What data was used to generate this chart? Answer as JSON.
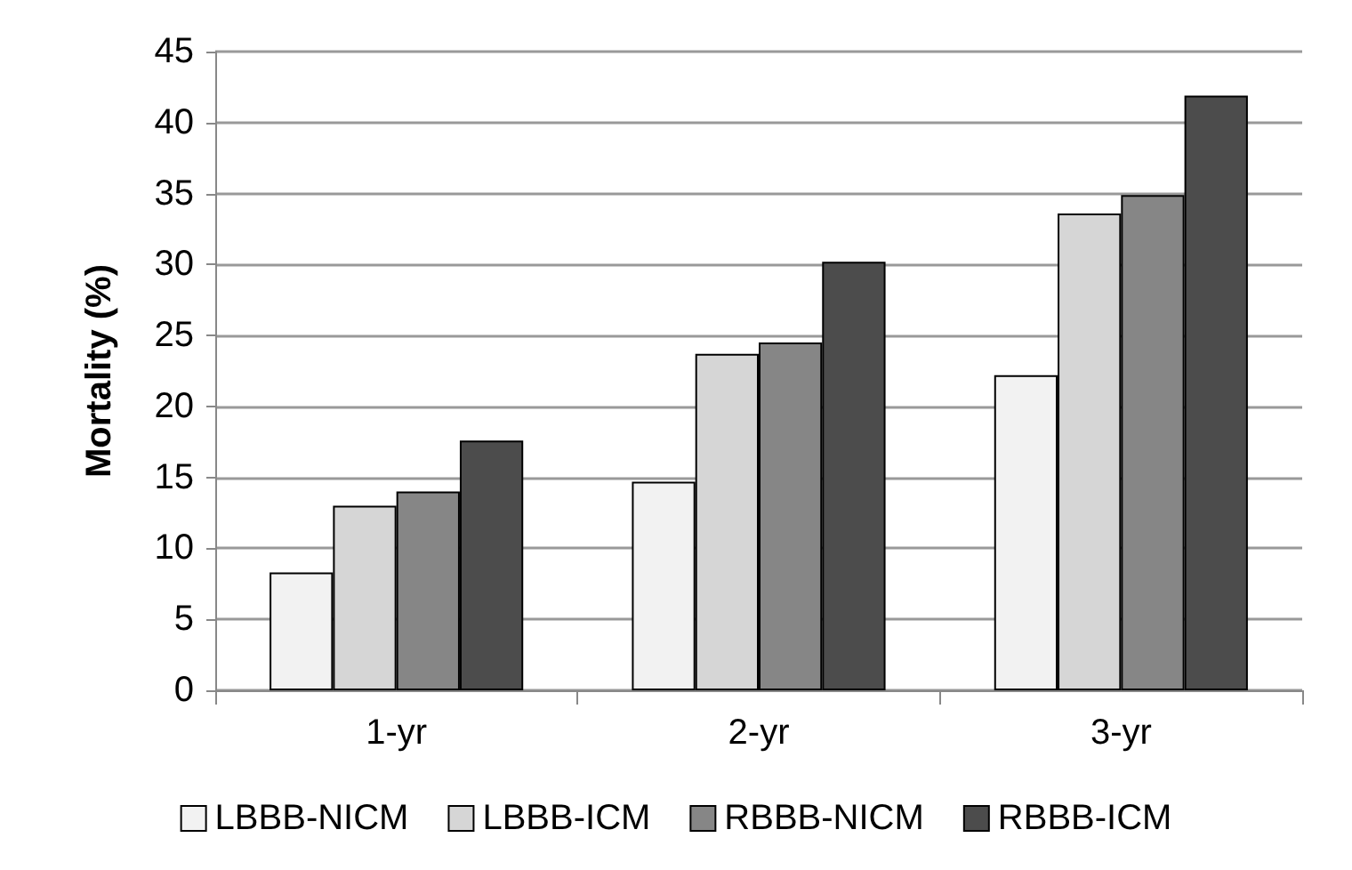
{
  "chart_data": {
    "type": "bar",
    "ylabel": "Mortality (%)",
    "categories": [
      "1-yr",
      "2-yr",
      "3-yr"
    ],
    "series": [
      {
        "name": "LBBB-NICM",
        "color": "#f2f2f2",
        "values": [
          8.3,
          14.7,
          22.2
        ]
      },
      {
        "name": "LBBB-ICM",
        "color": "#d6d6d6",
        "values": [
          13.0,
          23.7,
          33.6
        ]
      },
      {
        "name": "RBBB-NICM",
        "color": "#868686",
        "values": [
          14.0,
          24.5,
          34.9
        ]
      },
      {
        "name": "RBBB-ICM",
        "color": "#4c4c4c",
        "values": [
          17.6,
          30.2,
          41.9
        ]
      }
    ],
    "ylim": [
      0,
      45
    ],
    "yticks": [
      0,
      5,
      10,
      15,
      20,
      25,
      30,
      35,
      40,
      45
    ],
    "grid": "y",
    "legend": "bottom"
  }
}
